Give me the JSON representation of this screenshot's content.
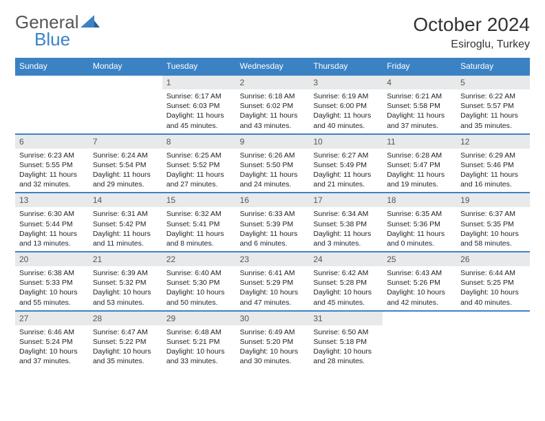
{
  "brand": {
    "general": "General",
    "blue": "Blue"
  },
  "title": "October 2024",
  "location": "Esiroglu, Turkey",
  "colors": {
    "accent": "#3b82c4",
    "daynum_bg": "#e8e9eb",
    "text": "#222222",
    "bg": "#ffffff"
  },
  "weekdays": [
    "Sunday",
    "Monday",
    "Tuesday",
    "Wednesday",
    "Thursday",
    "Friday",
    "Saturday"
  ],
  "weeks": [
    [
      null,
      null,
      {
        "n": "1",
        "sr": "6:17 AM",
        "ss": "6:03 PM",
        "dl": "11 hours and 45 minutes."
      },
      {
        "n": "2",
        "sr": "6:18 AM",
        "ss": "6:02 PM",
        "dl": "11 hours and 43 minutes."
      },
      {
        "n": "3",
        "sr": "6:19 AM",
        "ss": "6:00 PM",
        "dl": "11 hours and 40 minutes."
      },
      {
        "n": "4",
        "sr": "6:21 AM",
        "ss": "5:58 PM",
        "dl": "11 hours and 37 minutes."
      },
      {
        "n": "5",
        "sr": "6:22 AM",
        "ss": "5:57 PM",
        "dl": "11 hours and 35 minutes."
      }
    ],
    [
      {
        "n": "6",
        "sr": "6:23 AM",
        "ss": "5:55 PM",
        "dl": "11 hours and 32 minutes."
      },
      {
        "n": "7",
        "sr": "6:24 AM",
        "ss": "5:54 PM",
        "dl": "11 hours and 29 minutes."
      },
      {
        "n": "8",
        "sr": "6:25 AM",
        "ss": "5:52 PM",
        "dl": "11 hours and 27 minutes."
      },
      {
        "n": "9",
        "sr": "6:26 AM",
        "ss": "5:50 PM",
        "dl": "11 hours and 24 minutes."
      },
      {
        "n": "10",
        "sr": "6:27 AM",
        "ss": "5:49 PM",
        "dl": "11 hours and 21 minutes."
      },
      {
        "n": "11",
        "sr": "6:28 AM",
        "ss": "5:47 PM",
        "dl": "11 hours and 19 minutes."
      },
      {
        "n": "12",
        "sr": "6:29 AM",
        "ss": "5:46 PM",
        "dl": "11 hours and 16 minutes."
      }
    ],
    [
      {
        "n": "13",
        "sr": "6:30 AM",
        "ss": "5:44 PM",
        "dl": "11 hours and 13 minutes."
      },
      {
        "n": "14",
        "sr": "6:31 AM",
        "ss": "5:42 PM",
        "dl": "11 hours and 11 minutes."
      },
      {
        "n": "15",
        "sr": "6:32 AM",
        "ss": "5:41 PM",
        "dl": "11 hours and 8 minutes."
      },
      {
        "n": "16",
        "sr": "6:33 AM",
        "ss": "5:39 PM",
        "dl": "11 hours and 6 minutes."
      },
      {
        "n": "17",
        "sr": "6:34 AM",
        "ss": "5:38 PM",
        "dl": "11 hours and 3 minutes."
      },
      {
        "n": "18",
        "sr": "6:35 AM",
        "ss": "5:36 PM",
        "dl": "11 hours and 0 minutes."
      },
      {
        "n": "19",
        "sr": "6:37 AM",
        "ss": "5:35 PM",
        "dl": "10 hours and 58 minutes."
      }
    ],
    [
      {
        "n": "20",
        "sr": "6:38 AM",
        "ss": "5:33 PM",
        "dl": "10 hours and 55 minutes."
      },
      {
        "n": "21",
        "sr": "6:39 AM",
        "ss": "5:32 PM",
        "dl": "10 hours and 53 minutes."
      },
      {
        "n": "22",
        "sr": "6:40 AM",
        "ss": "5:30 PM",
        "dl": "10 hours and 50 minutes."
      },
      {
        "n": "23",
        "sr": "6:41 AM",
        "ss": "5:29 PM",
        "dl": "10 hours and 47 minutes."
      },
      {
        "n": "24",
        "sr": "6:42 AM",
        "ss": "5:28 PM",
        "dl": "10 hours and 45 minutes."
      },
      {
        "n": "25",
        "sr": "6:43 AM",
        "ss": "5:26 PM",
        "dl": "10 hours and 42 minutes."
      },
      {
        "n": "26",
        "sr": "6:44 AM",
        "ss": "5:25 PM",
        "dl": "10 hours and 40 minutes."
      }
    ],
    [
      {
        "n": "27",
        "sr": "6:46 AM",
        "ss": "5:24 PM",
        "dl": "10 hours and 37 minutes."
      },
      {
        "n": "28",
        "sr": "6:47 AM",
        "ss": "5:22 PM",
        "dl": "10 hours and 35 minutes."
      },
      {
        "n": "29",
        "sr": "6:48 AM",
        "ss": "5:21 PM",
        "dl": "10 hours and 33 minutes."
      },
      {
        "n": "30",
        "sr": "6:49 AM",
        "ss": "5:20 PM",
        "dl": "10 hours and 30 minutes."
      },
      {
        "n": "31",
        "sr": "6:50 AM",
        "ss": "5:18 PM",
        "dl": "10 hours and 28 minutes."
      },
      null,
      null
    ]
  ],
  "labels": {
    "sunrise": "Sunrise:",
    "sunset": "Sunset:",
    "daylight": "Daylight:"
  }
}
